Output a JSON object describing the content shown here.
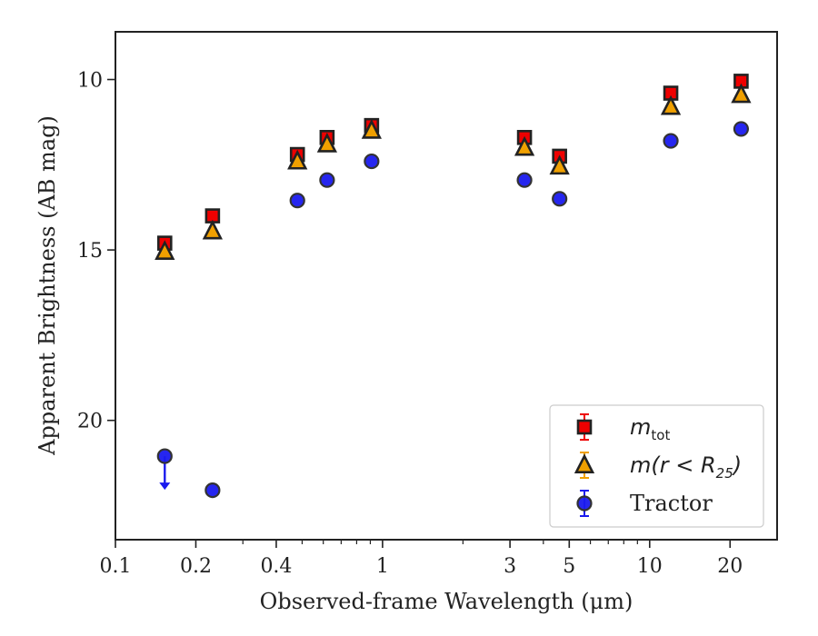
{
  "chart_data": {
    "type": "scatter",
    "xlabel": "Observed-frame Wavelength (μm)",
    "ylabel": "Apparent Brightness (AB mag)",
    "xscale": "log",
    "xlim": [
      0.1,
      30
    ],
    "ylim": [
      23.5,
      8.6
    ],
    "y_inverted": true,
    "grid": false,
    "legend_position": "lower right",
    "x_ticks": [
      {
        "value": 0.1,
        "label": "0.1"
      },
      {
        "value": 0.2,
        "label": "0.2"
      },
      {
        "value": 0.4,
        "label": "0.4"
      },
      {
        "value": 1,
        "label": "1"
      },
      {
        "value": 3,
        "label": "3"
      },
      {
        "value": 5,
        "label": "5"
      },
      {
        "value": 10,
        "label": "10"
      },
      {
        "value": 20,
        "label": "20"
      }
    ],
    "y_ticks": [
      {
        "value": 10,
        "label": "10"
      },
      {
        "value": 15,
        "label": "15"
      },
      {
        "value": 20,
        "label": "20"
      }
    ],
    "series": [
      {
        "name": "m_tot",
        "legend_main": "m",
        "legend_sub": "tot",
        "marker": "square",
        "color": "#ee0000",
        "edge": "#222222",
        "points": [
          {
            "x": 0.153,
            "y": 14.8
          },
          {
            "x": 0.231,
            "y": 14.0
          },
          {
            "x": 0.48,
            "y": 12.2
          },
          {
            "x": 0.62,
            "y": 11.7
          },
          {
            "x": 0.91,
            "y": 11.35
          },
          {
            "x": 3.4,
            "y": 11.7
          },
          {
            "x": 4.6,
            "y": 12.25
          },
          {
            "x": 12.0,
            "y": 10.4
          },
          {
            "x": 22.0,
            "y": 10.05
          }
        ]
      },
      {
        "name": "m(r < R_25)",
        "legend_pre": "m(r < R",
        "legend_sub": "25",
        "legend_post": ")",
        "marker": "triangle",
        "color": "#f0a000",
        "edge": "#222222",
        "points": [
          {
            "x": 0.153,
            "y": 15.05
          },
          {
            "x": 0.231,
            "y": 14.45
          },
          {
            "x": 0.48,
            "y": 12.4
          },
          {
            "x": 0.62,
            "y": 11.9
          },
          {
            "x": 0.91,
            "y": 11.5
          },
          {
            "x": 3.4,
            "y": 12.0
          },
          {
            "x": 4.6,
            "y": 12.55
          },
          {
            "x": 12.0,
            "y": 10.8
          },
          {
            "x": 22.0,
            "y": 10.45
          }
        ]
      },
      {
        "name": "Tractor",
        "marker": "circle",
        "color": "#1a1aee",
        "edge": "#333333",
        "points": [
          {
            "x": 0.153,
            "y": 21.05,
            "upper_limit": true
          },
          {
            "x": 0.231,
            "y": 22.05
          },
          {
            "x": 0.48,
            "y": 13.55
          },
          {
            "x": 0.62,
            "y": 12.95
          },
          {
            "x": 0.91,
            "y": 12.4
          },
          {
            "x": 3.4,
            "y": 12.95
          },
          {
            "x": 4.6,
            "y": 13.5
          },
          {
            "x": 12.0,
            "y": 11.8
          },
          {
            "x": 22.0,
            "y": 11.45
          }
        ]
      }
    ]
  }
}
